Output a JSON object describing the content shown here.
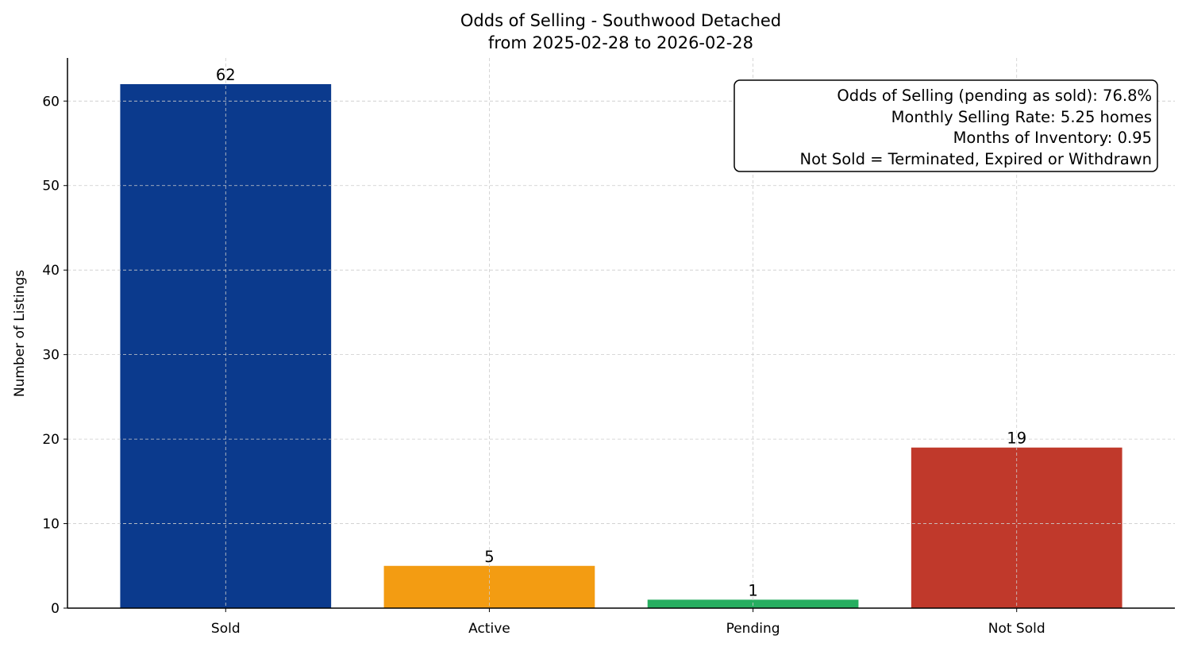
{
  "chart_data": {
    "type": "bar",
    "title": "Odds of Selling - Southwood Detached",
    "subtitle": "from 2025-02-28 to 2026-02-28",
    "xlabel": "",
    "ylabel": "Number of Listings",
    "categories": [
      "Sold",
      "Active",
      "Pending",
      "Not Sold"
    ],
    "values": [
      62,
      5,
      1,
      19
    ],
    "data_labels": [
      "62",
      "5",
      "1",
      "19"
    ],
    "colors": [
      "#0b3a8d",
      "#f39c12",
      "#27ae60",
      "#c0392b"
    ],
    "ylim": [
      0,
      65.1
    ],
    "yticks": [
      0,
      10,
      20,
      30,
      40,
      50,
      60
    ],
    "grid": true,
    "annotation": [
      "Odds of Selling (pending as sold): 76.8%",
      "Monthly Selling Rate: 5.25 homes",
      "Months of Inventory: 0.95",
      "Not Sold = Terminated, Expired or Withdrawn"
    ],
    "annotation_placement": "top-right"
  }
}
